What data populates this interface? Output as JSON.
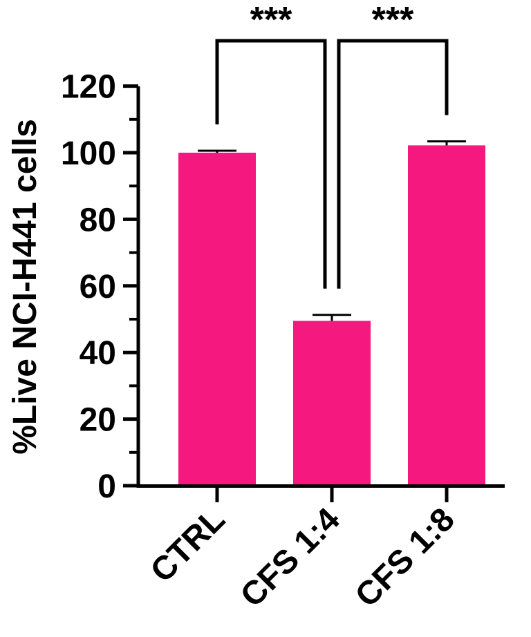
{
  "chart_data": {
    "type": "bar",
    "title": "",
    "xlabel": "",
    "ylabel": "%Live NCI-H441 cells",
    "categories": [
      "CTRL",
      "CFS 1:4",
      "CFS 1:8"
    ],
    "values": [
      100,
      49.5,
      102.2
    ],
    "errors": [
      0.6,
      1.8,
      1.2
    ],
    "ylim": [
      0,
      120
    ],
    "yticks": [
      0,
      20,
      40,
      60,
      80,
      100,
      120
    ],
    "bar_color": "#f5187f",
    "grid": false,
    "significance": [
      {
        "from": 0,
        "to": 1,
        "label": "***"
      },
      {
        "from": 2,
        "to": 1,
        "label": "***"
      }
    ]
  }
}
